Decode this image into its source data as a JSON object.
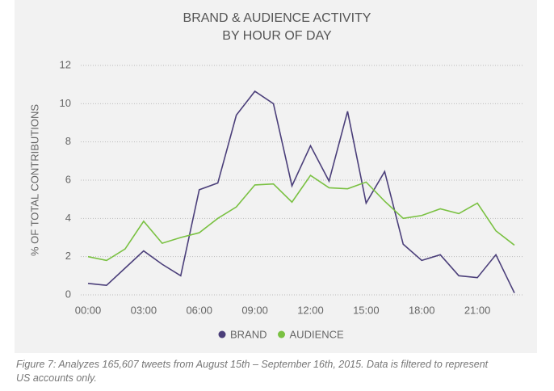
{
  "chart_data": {
    "type": "line",
    "title": [
      "BRAND & AUDIENCE ACTIVITY",
      "BY HOUR OF DAY"
    ],
    "y_label": "% OF TOTAL CONTRIBUTIONS",
    "categories": [
      "00:00",
      null,
      null,
      "03:00",
      null,
      null,
      "06:00",
      null,
      null,
      "09:00",
      null,
      null,
      "12:00",
      null,
      null,
      "15:00",
      null,
      null,
      "18:00",
      null,
      null,
      "21:00",
      null,
      null
    ],
    "series": [
      {
        "name": "BRAND",
        "color": "#4b3f7a",
        "values": [
          0.6,
          0.5,
          1.4,
          2.3,
          1.6,
          1.0,
          5.5,
          5.85,
          9.4,
          10.65,
          10.0,
          5.7,
          7.8,
          5.95,
          9.6,
          4.8,
          6.45,
          2.65,
          1.8,
          2.1,
          1.0,
          0.9,
          2.1,
          0.1
        ]
      },
      {
        "name": "AUDIENCE",
        "color": "#7ac142",
        "values": [
          2.0,
          1.8,
          2.4,
          3.85,
          2.7,
          3.0,
          3.25,
          4.0,
          4.6,
          5.75,
          5.8,
          4.85,
          6.25,
          5.6,
          5.55,
          5.9,
          4.9,
          4.0,
          4.15,
          4.5,
          4.25,
          4.8,
          3.35,
          2.6
        ]
      }
    ],
    "ylim": [
      0,
      12
    ],
    "yticks": [
      0,
      2,
      4,
      6,
      8,
      10,
      12
    ],
    "grid": true,
    "legend": "bottom"
  },
  "caption": [
    "Figure 7: Analyzes 165,607 tweets from August 15th – September 16th, 2015. Data is filtered to represent",
    "US accounts only."
  ]
}
